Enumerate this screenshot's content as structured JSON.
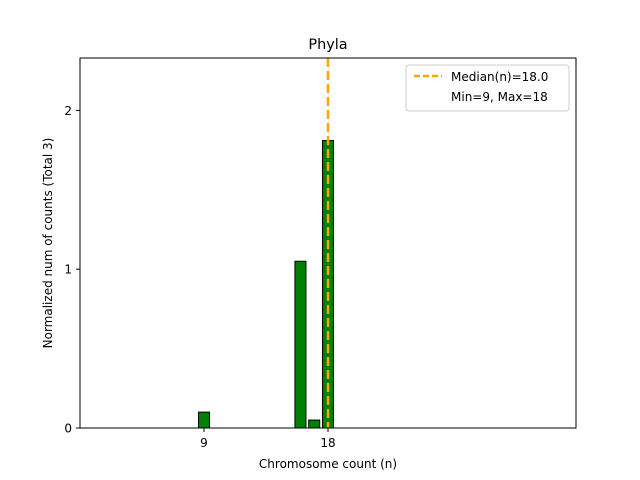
{
  "chart_data": {
    "type": "bar",
    "title": "Phyla",
    "xlabel": "Chromosome count (n)",
    "ylabel": "Normalized num of counts     (Total 3)",
    "x": [
      9,
      16,
      17,
      18
    ],
    "values": [
      0.1,
      1.05,
      0.05,
      1.81
    ],
    "bar_width": 0.8,
    "xlim": [
      0,
      36
    ],
    "ylim": [
      0,
      2.33
    ],
    "xticks": [
      9,
      18
    ],
    "yticks": [
      0,
      1,
      2
    ],
    "median": 18.0,
    "legend": {
      "placement": "top-right",
      "entries": [
        "Median(n)=18.0",
        "Min=9, Max=18"
      ]
    },
    "bar_color": "#008000",
    "bar_edge_color": "#000000",
    "median_color": "#FFA500",
    "grid": false
  }
}
